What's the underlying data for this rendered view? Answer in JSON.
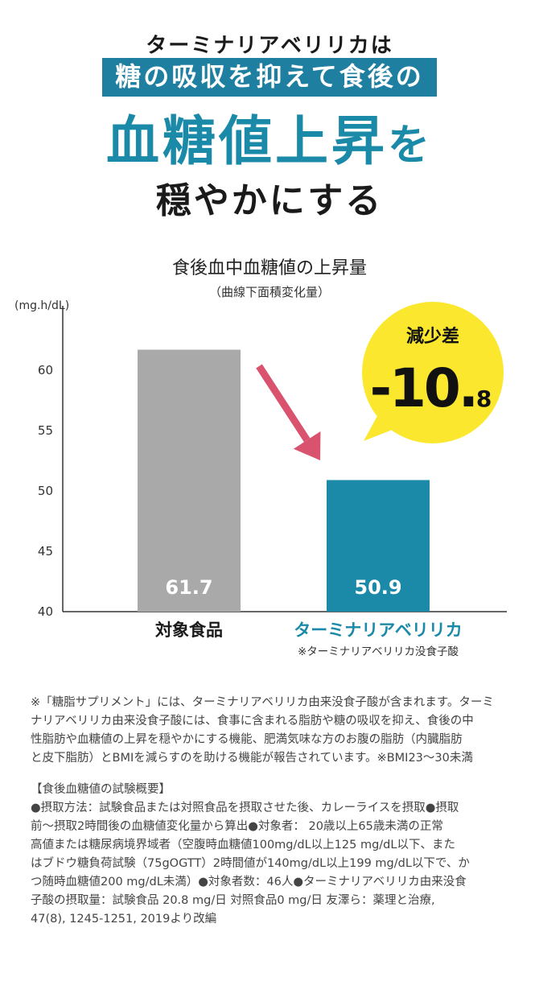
{
  "headline": {
    "line1": "ターミナリアベリリカは",
    "line2": "糖の吸収を抑えて食後の",
    "line3_main": "血糖値上昇",
    "line3_particle": "を",
    "line4": "穏やかにする"
  },
  "chart_data": {
    "type": "bar",
    "title": "食後血中血糖値の上昇量",
    "subtitle": "（曲線下面積変化量）",
    "ylabel": "(mg.h/dL)",
    "ylim": [
      40,
      65
    ],
    "yticks": [
      "40",
      "45",
      "50",
      "55",
      "60"
    ],
    "categories": [
      "対象食品",
      "ターミナリアベリリカ"
    ],
    "category_sublabels": [
      "",
      "※ターミナリアベリリカ没食子酸"
    ],
    "values": [
      61.7,
      50.9
    ],
    "value_labels": [
      "61.7",
      "50.9"
    ],
    "colors": [
      "#a9a9a9",
      "#1b8aa8"
    ],
    "category_label_colors": [
      "#1a1a1a",
      "#1b8aa8"
    ],
    "arrow_color": "#d9536e",
    "callout": {
      "label": "減少差",
      "value_main": "-10.",
      "value_small": "8",
      "bg_color": "#fbe82e"
    }
  },
  "notes": {
    "footnote_lines": [
      "※「糖脂サプリメント」には、ターミナリアベリリカ由来没食子酸が含まれます。ターミ",
      "ナリアベリリカ由来没食子酸には、食事に含まれる脂肪や糖の吸収を抑え、食後の中",
      "性脂肪や血糖値の上昇を穏やかにする機能、肥満気味な方のお腹の脂肪（内臓脂肪",
      "と皮下脂肪）とBMIを減らすのを助ける機能が報告されています。※BMI23～30未満"
    ],
    "study_title": "【食後血糖値の試験概要】",
    "study_lines": [
      "●摂取方法：試験食品または対照食品を摂取させた後、カレーライスを摂取●摂取",
      "前～摂取2時間後の血糖値変化量から算出●対象者： 20歳以上65歳未満の正常",
      "高値または糖尿病境界域者（空腹時血糖値100mg/dL以上125 mg/dL以下、また",
      "はブドウ糖負荷試験（75gOGTT）2時間値が140mg/dL以上199 mg/dL以下で、か",
      "つ随時血糖値200 mg/dL未満）●対象者数：46人●ターミナリアベリリカ由来没食",
      "子酸の摂取量：試験食品 20.8 mg/日 対照食品0 mg/日 友澤ら：薬理と治療,",
      "47(8), 1245-1251, 2019より改編"
    ]
  }
}
